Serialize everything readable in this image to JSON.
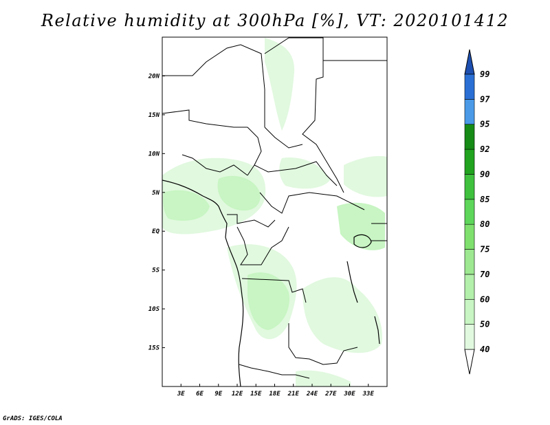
{
  "title": "Relative humidity at 300hPa [%], VT: 2020101412",
  "credit": "GrADS: IGES/COLA",
  "map": {
    "lon_range": [
      0,
      36
    ],
    "lat_range": [
      -20,
      25
    ],
    "lon_ticks": [
      "3E",
      "6E",
      "9E",
      "12E",
      "15E",
      "18E",
      "21E",
      "24E",
      "27E",
      "30E",
      "33E"
    ],
    "lat_ticks": [
      "20N",
      "15N",
      "10N",
      "5N",
      "EQ",
      "5S",
      "10S",
      "15S"
    ]
  },
  "colorbar": {
    "levels": [
      "40",
      "50",
      "60",
      "70",
      "75",
      "80",
      "85",
      "90",
      "92",
      "95",
      "97",
      "99"
    ],
    "colors": [
      "#f0fcf0",
      "#e1f9df",
      "#c8f5c3",
      "#b3f0ab",
      "#9de891",
      "#7fe06e",
      "#5ed65a",
      "#3fc13e",
      "#21a31f",
      "#168b16",
      "#4a9ae8",
      "#2a6fd4",
      "#1d4fb0"
    ]
  }
}
